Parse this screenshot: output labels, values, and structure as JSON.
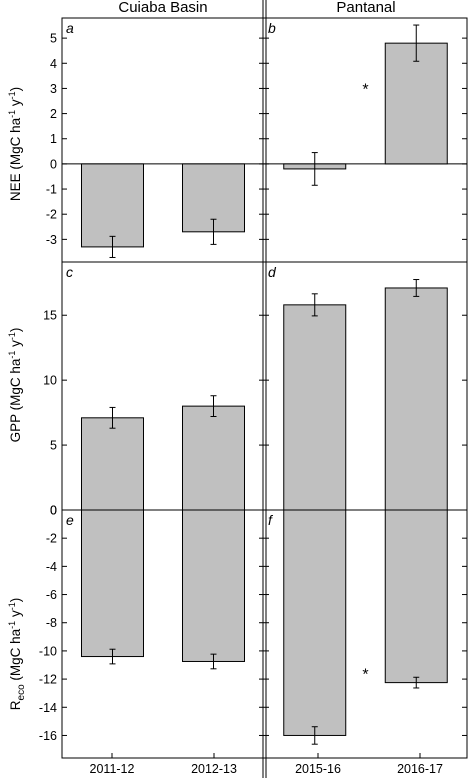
{
  "column_titles": [
    "Cuiaba Basin",
    "Pantanal"
  ],
  "x_categories_left": [
    "2011-12",
    "2012-13"
  ],
  "x_categories_right": [
    "2015-16",
    "2016-17"
  ],
  "y_axis_labels": {
    "nee": {
      "main": "NEE (MgC ha",
      "sup1": "-1",
      "mid": " y",
      "sup2": "-1",
      "end": ")"
    },
    "gpp": {
      "main": "GPP (MgC ha",
      "sup1": "-1",
      "mid": " y",
      "sup2": "-1",
      "end": ")"
    },
    "reco": {
      "main": "R",
      "sub": "eco",
      "rest": " (MgC ha",
      "sup1": "-1",
      "mid": " y",
      "sup2": "-1",
      "end": ")"
    }
  },
  "significance_marker": "*",
  "colors": {
    "bar_fill": "#c0c0c0",
    "bar_stroke": "#000000",
    "axis": "#000000"
  },
  "chart_data": [
    {
      "type": "bar",
      "panel": "a",
      "metric": "NEE",
      "categories": [
        "2011-12",
        "2012-13"
      ],
      "values": [
        -3.3,
        -2.7
      ],
      "errors": [
        0.42,
        0.5
      ],
      "ylim": [
        -3.9,
        5.8
      ],
      "yticks": [
        -3,
        -2,
        -1,
        0,
        1,
        2,
        3,
        4,
        5
      ],
      "significant": false
    },
    {
      "type": "bar",
      "panel": "b",
      "metric": "NEE",
      "categories": [
        "2015-16",
        "2016-17"
      ],
      "values": [
        -0.2,
        4.8
      ],
      "errors": [
        0.65,
        0.72
      ],
      "ylim": [
        -3.9,
        5.8
      ],
      "yticks": [
        -3,
        -2,
        -1,
        0,
        1,
        2,
        3,
        4,
        5
      ],
      "significant": true
    },
    {
      "type": "bar",
      "panel": "c",
      "metric": "GPP",
      "categories": [
        "2011-12",
        "2012-13"
      ],
      "values": [
        7.1,
        8.0
      ],
      "errors": [
        0.8,
        0.8
      ],
      "ylim": [
        0,
        19.1
      ],
      "yticks": [
        0,
        5,
        10,
        15
      ],
      "significant": false
    },
    {
      "type": "bar",
      "panel": "d",
      "metric": "GPP",
      "categories": [
        "2015-16",
        "2016-17"
      ],
      "values": [
        15.8,
        17.1
      ],
      "errors": [
        0.85,
        0.65
      ],
      "ylim": [
        0,
        19.1
      ],
      "yticks": [
        0,
        5,
        10,
        15
      ],
      "significant": false
    },
    {
      "type": "bar",
      "panel": "e",
      "metric": "Reco",
      "categories": [
        "2011-12",
        "2012-13"
      ],
      "values": [
        -10.4,
        -10.75
      ],
      "errors": [
        0.52,
        0.52
      ],
      "ylim": [
        -17.6,
        0
      ],
      "yticks": [
        -16,
        -14,
        -12,
        -10,
        -8,
        -6,
        -4,
        -2,
        0
      ],
      "significant": false
    },
    {
      "type": "bar",
      "panel": "f",
      "metric": "Reco",
      "categories": [
        "2015-16",
        "2016-17"
      ],
      "values": [
        -16.0,
        -12.25
      ],
      "errors": [
        0.62,
        0.38
      ],
      "ylim": [
        -17.6,
        0
      ],
      "yticks": [
        -16,
        -14,
        -12,
        -10,
        -8,
        -6,
        -4,
        -2,
        0
      ],
      "significant": true
    }
  ]
}
